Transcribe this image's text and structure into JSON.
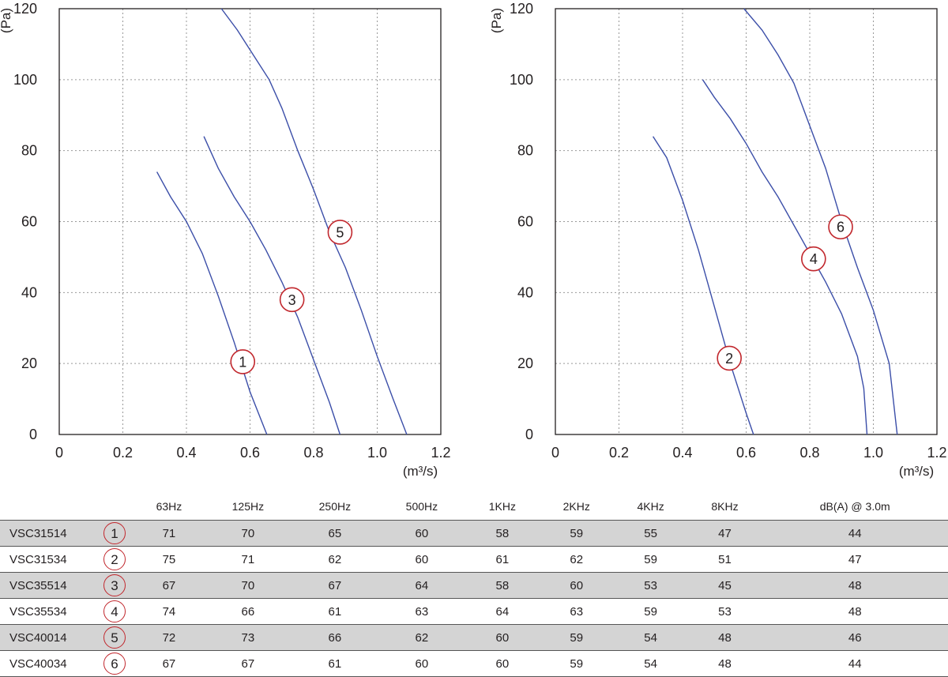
{
  "colors": {
    "curve": "#3b4ea8",
    "marker": "#c1272d",
    "grid": "#999999",
    "shaded_row": "#d4d4d4"
  },
  "chart_data": [
    {
      "type": "line",
      "ylabel": "(Pa)",
      "xlabel": "(m³/s)",
      "xlim": [
        0,
        1.2
      ],
      "ylim": [
        0,
        120
      ],
      "xticks": [
        "0",
        "0.2",
        "0.4",
        "0.6",
        "0.8",
        "1.0",
        "1.2"
      ],
      "yticks": [
        "0",
        "20",
        "40",
        "60",
        "80",
        "100",
        "120"
      ],
      "grid": true,
      "series": [
        {
          "name": "1",
          "marker_at": [
            0.577,
            20.5
          ],
          "points": [
            [
              0.307,
              74
            ],
            [
              0.35,
              67
            ],
            [
              0.4,
              60
            ],
            [
              0.45,
              51
            ],
            [
              0.5,
              39
            ],
            [
              0.55,
              26
            ],
            [
              0.6,
              12
            ],
            [
              0.653,
              0
            ]
          ]
        },
        {
          "name": "3",
          "marker_at": [
            0.732,
            38
          ],
          "points": [
            [
              0.455,
              84
            ],
            [
              0.5,
              75
            ],
            [
              0.55,
              67
            ],
            [
              0.6,
              60
            ],
            [
              0.65,
              52
            ],
            [
              0.7,
              43
            ],
            [
              0.75,
              33
            ],
            [
              0.8,
              21
            ],
            [
              0.85,
              9
            ],
            [
              0.883,
              0
            ]
          ]
        },
        {
          "name": "5",
          "marker_at": [
            0.883,
            57
          ],
          "points": [
            [
              0.51,
              120
            ],
            [
              0.56,
              114
            ],
            [
              0.61,
              107
            ],
            [
              0.66,
              100
            ],
            [
              0.7,
              92
            ],
            [
              0.75,
              80
            ],
            [
              0.8,
              69
            ],
            [
              0.85,
              57
            ],
            [
              0.9,
              47
            ],
            [
              0.95,
              35
            ],
            [
              1.0,
              22
            ],
            [
              1.05,
              10
            ],
            [
              1.093,
              0
            ]
          ]
        }
      ]
    },
    {
      "type": "line",
      "ylabel": "(Pa)",
      "xlabel": "(m³/s)",
      "xlim": [
        0,
        1.2
      ],
      "ylim": [
        0,
        120
      ],
      "xticks": [
        "0",
        "0.2",
        "0.4",
        "0.6",
        "0.8",
        "1.0",
        "1.2"
      ],
      "yticks": [
        "0",
        "20",
        "40",
        "60",
        "80",
        "100",
        "120"
      ],
      "grid": true,
      "series": [
        {
          "name": "2",
          "marker_at": [
            0.547,
            21.5
          ],
          "points": [
            [
              0.307,
              84
            ],
            [
              0.35,
              78
            ],
            [
              0.4,
              66
            ],
            [
              0.45,
              52
            ],
            [
              0.5,
              36
            ],
            [
              0.55,
              20
            ],
            [
              0.6,
              6
            ],
            [
              0.623,
              0
            ]
          ]
        },
        {
          "name": "4",
          "marker_at": [
            0.812,
            49.5
          ],
          "points": [
            [
              0.463,
              100
            ],
            [
              0.5,
              95
            ],
            [
              0.55,
              89
            ],
            [
              0.6,
              82
            ],
            [
              0.65,
              74
            ],
            [
              0.7,
              67
            ],
            [
              0.75,
              59
            ],
            [
              0.8,
              51
            ],
            [
              0.85,
              43
            ],
            [
              0.9,
              34
            ],
            [
              0.95,
              22
            ],
            [
              0.97,
              13
            ],
            [
              0.98,
              0
            ]
          ]
        },
        {
          "name": "6",
          "marker_at": [
            0.897,
            58.5
          ],
          "points": [
            [
              0.593,
              120
            ],
            [
              0.65,
              114
            ],
            [
              0.7,
              107
            ],
            [
              0.75,
              99
            ],
            [
              0.8,
              87
            ],
            [
              0.85,
              75
            ],
            [
              0.9,
              60
            ],
            [
              0.95,
              47
            ],
            [
              1.0,
              35
            ],
            [
              1.05,
              20
            ],
            [
              1.075,
              0
            ]
          ]
        }
      ]
    }
  ],
  "sound_table": {
    "columns": [
      "63Hz",
      "125Hz",
      "250Hz",
      "500Hz",
      "1KHz",
      "2KHz",
      "4KHz",
      "8KHz",
      "dB(A) @ 3.0m"
    ],
    "rows": [
      {
        "model": "VSC31514",
        "curve": "1",
        "values": [
          "71",
          "70",
          "65",
          "60",
          "58",
          "59",
          "55",
          "47",
          "44"
        ]
      },
      {
        "model": "VSC31534",
        "curve": "2",
        "values": [
          "75",
          "71",
          "62",
          "60",
          "61",
          "62",
          "59",
          "51",
          "47"
        ]
      },
      {
        "model": "VSC35514",
        "curve": "3",
        "values": [
          "67",
          "70",
          "67",
          "64",
          "58",
          "60",
          "53",
          "45",
          "48"
        ]
      },
      {
        "model": "VSC35534",
        "curve": "4",
        "values": [
          "74",
          "66",
          "61",
          "63",
          "64",
          "63",
          "59",
          "53",
          "48"
        ]
      },
      {
        "model": "VSC40014",
        "curve": "5",
        "values": [
          "72",
          "73",
          "66",
          "62",
          "60",
          "59",
          "54",
          "48",
          "46"
        ]
      },
      {
        "model": "VSC40034",
        "curve": "6",
        "values": [
          "67",
          "67",
          "61",
          "60",
          "60",
          "59",
          "54",
          "48",
          "44"
        ]
      }
    ]
  }
}
